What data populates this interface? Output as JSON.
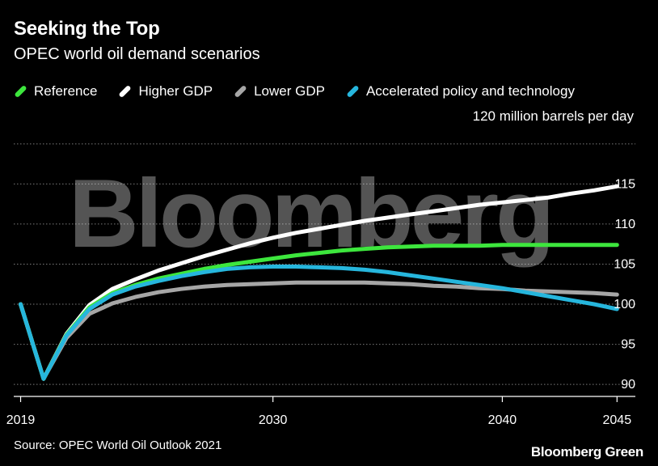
{
  "title": "Seeking the Top",
  "subtitle": "OPEC world oil demand scenarios",
  "unit_label": "120 million barrels per day",
  "source": "Source: OPEC World Oil Outlook 2021",
  "brand": "Bloomberg Green",
  "watermark": "Bloomberg",
  "colors": {
    "background": "#000000",
    "grid": "#7a7a7a",
    "reference": "#3de63d",
    "higher_gdp": "#ffffff",
    "lower_gdp": "#a6a6a6",
    "accelerated": "#26b6dd"
  },
  "chart_data": {
    "type": "line",
    "x_ticks": [
      2019,
      2030,
      2040,
      2045
    ],
    "x_tick_labels": [
      "2019",
      "2030",
      "2040",
      "2045"
    ],
    "y_ticks": [
      90,
      95,
      100,
      105,
      110,
      115,
      120
    ],
    "y_tick_labels": [
      "90",
      "95",
      "100",
      "105",
      "110",
      "115",
      ""
    ],
    "xlim": [
      2018.7,
      2045.8
    ],
    "ylim": [
      88.5,
      122
    ],
    "grid": true,
    "legend_position": "top-left",
    "series": [
      {
        "key": "reference",
        "name": "Reference",
        "x": [
          2019,
          2020,
          2021,
          2022,
          2023,
          2024,
          2025,
          2026,
          2027,
          2028,
          2029,
          2030,
          2031,
          2032,
          2033,
          2034,
          2035,
          2036,
          2037,
          2038,
          2039,
          2040,
          2041,
          2042,
          2043,
          2044,
          2045
        ],
        "y": [
          100,
          90.7,
          96.2,
          99.6,
          101.4,
          102.4,
          103.2,
          103.8,
          104.4,
          104.9,
          105.3,
          105.7,
          106.1,
          106.4,
          106.7,
          106.9,
          107.1,
          107.2,
          107.3,
          107.3,
          107.3,
          107.4,
          107.4,
          107.4,
          107.4,
          107.4,
          107.4
        ]
      },
      {
        "key": "higher_gdp",
        "name": "Higher GDP",
        "x": [
          2019,
          2020,
          2021,
          2022,
          2023,
          2024,
          2025,
          2026,
          2027,
          2028,
          2029,
          2030,
          2031,
          2032,
          2033,
          2034,
          2035,
          2036,
          2037,
          2038,
          2039,
          2040,
          2041,
          2042,
          2043,
          2044,
          2045
        ],
        "y": [
          100,
          90.7,
          96.3,
          99.9,
          101.9,
          103.1,
          104.2,
          105.1,
          106,
          106.8,
          107.6,
          108.3,
          108.9,
          109.4,
          109.9,
          110.4,
          110.8,
          111.2,
          111.6,
          112,
          112.4,
          112.7,
          113,
          113.3,
          113.8,
          114.2,
          114.7
        ]
      },
      {
        "key": "lower_gdp",
        "name": "Lower GDP",
        "x": [
          2019,
          2020,
          2021,
          2022,
          2023,
          2024,
          2025,
          2026,
          2027,
          2028,
          2029,
          2030,
          2031,
          2032,
          2033,
          2034,
          2035,
          2036,
          2037,
          2038,
          2039,
          2040,
          2041,
          2042,
          2043,
          2044,
          2045
        ],
        "y": [
          100,
          90.7,
          95.8,
          98.8,
          100.1,
          100.9,
          101.5,
          101.9,
          102.2,
          102.4,
          102.5,
          102.6,
          102.7,
          102.7,
          102.7,
          102.7,
          102.6,
          102.5,
          102.3,
          102.2,
          102,
          101.9,
          101.7,
          101.6,
          101.5,
          101.4,
          101.2
        ]
      },
      {
        "key": "accelerated",
        "name": "Accelerated policy and technology",
        "x": [
          2019,
          2020,
          2021,
          2022,
          2023,
          2024,
          2025,
          2026,
          2027,
          2028,
          2029,
          2030,
          2031,
          2032,
          2033,
          2034,
          2035,
          2036,
          2037,
          2038,
          2039,
          2040,
          2041,
          2042,
          2043,
          2044,
          2045
        ],
        "y": [
          100,
          90.7,
          96.1,
          99.4,
          101.2,
          102.2,
          102.9,
          103.5,
          104,
          104.4,
          104.6,
          104.7,
          104.7,
          104.6,
          104.5,
          104.3,
          104,
          103.6,
          103.2,
          102.8,
          102.4,
          102,
          101.5,
          101,
          100.5,
          100,
          99.4
        ]
      }
    ]
  }
}
